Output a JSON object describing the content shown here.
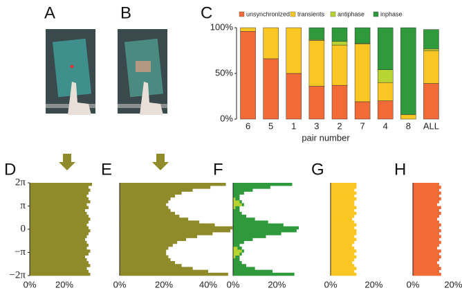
{
  "panel_labels": [
    "A",
    "B",
    "C",
    "D",
    "E",
    "F",
    "G",
    "H"
  ],
  "chart_data": [
    {
      "type": "bar",
      "stacked": true,
      "xlabel": "pair number",
      "categories": [
        "6",
        "5",
        "1",
        "3",
        "2",
        "7",
        "4",
        "8",
        "ALL"
      ],
      "series": [
        {
          "name": "unsynchronized",
          "color": "#f26a35",
          "values": [
            96,
            66,
            50,
            36,
            37,
            19,
            20,
            0,
            39
          ]
        },
        {
          "name": "transients",
          "color": "#f9c623",
          "values": [
            4,
            34,
            50,
            50,
            44,
            63,
            20,
            5,
            36
          ]
        },
        {
          "name": "antiphase",
          "color": "#b8d432",
          "values": [
            0,
            0,
            0,
            1,
            4,
            1,
            14,
            0,
            2
          ]
        },
        {
          "name": "inphase",
          "color": "#2e9a3c",
          "values": [
            0,
            0,
            0,
            13,
            15,
            17,
            46,
            95,
            21
          ]
        }
      ],
      "ylim": [
        0,
        100
      ],
      "yticks": [
        {
          "value": 0,
          "label": "0%"
        },
        {
          "value": 50,
          "label": "50%"
        },
        {
          "value": 100,
          "label": "100%"
        }
      ]
    },
    {
      "type": "histogram",
      "orientation": "horizontal",
      "color": "#8f8a2a",
      "bins": [
        -2,
        -1.875,
        -1.75,
        -1.625,
        -1.5,
        -1.375,
        -1.25,
        -1.125,
        -1,
        -0.875,
        -0.75,
        -0.625,
        -0.5,
        -0.375,
        -0.25,
        -0.125,
        0,
        0.125,
        0.25,
        0.375,
        0.5,
        0.625,
        0.75,
        0.875,
        1,
        1.125,
        1.25,
        1.375,
        1.5,
        1.625,
        1.75,
        1.875,
        2
      ],
      "values": [
        35,
        34,
        33,
        35,
        34,
        33,
        32,
        34,
        35,
        33,
        34,
        33,
        32,
        33,
        34,
        35,
        34,
        33,
        34,
        35,
        34,
        33,
        32,
        34,
        33,
        35,
        34,
        33,
        34,
        35,
        34,
        36
      ],
      "xlim": [
        0,
        40
      ],
      "xticks": [
        {
          "value": 0,
          "label": "0%"
        },
        {
          "value": 20,
          "label": "20%"
        }
      ],
      "ylim": [
        -2,
        2
      ],
      "yticks": [
        {
          "value": 2,
          "label": "2π"
        },
        {
          "value": 1,
          "label": "π"
        },
        0,
        {
          "value": -1,
          "label": "−π"
        },
        {
          "value": -2,
          "label": "−2π"
        }
      ]
    },
    {
      "type": "histogram",
      "orientation": "horizontal",
      "color": "#8f8a2a",
      "bins": [
        -2,
        -1.875,
        -1.75,
        -1.625,
        -1.5,
        -1.375,
        -1.25,
        -1.125,
        -1,
        -0.875,
        -0.75,
        -0.625,
        -0.5,
        -0.375,
        -0.25,
        -0.125,
        0,
        0.125,
        0.25,
        0.375,
        0.5,
        0.625,
        0.75,
        0.875,
        1,
        1.125,
        1.25,
        1.375,
        1.5,
        1.625,
        1.75,
        1.875,
        2
      ],
      "values": [
        49,
        40,
        33,
        28,
        25,
        23,
        22,
        21,
        21,
        22,
        24,
        26,
        30,
        35,
        42,
        50,
        51,
        43,
        36,
        31,
        27,
        25,
        23,
        22,
        21,
        22,
        23,
        25,
        28,
        33,
        41,
        48
      ],
      "xlim": [
        0,
        50
      ],
      "xticks": [
        {
          "value": 0,
          "label": "0%"
        },
        {
          "value": 20,
          "label": "20%"
        },
        {
          "value": 40,
          "label": "40%"
        }
      ],
      "ylim": [
        -2,
        2
      ]
    },
    {
      "type": "histogram",
      "orientation": "horizontal",
      "stacked": true,
      "bins": [
        -2,
        -1.875,
        -1.75,
        -1.625,
        -1.5,
        -1.375,
        -1.25,
        -1.125,
        -1,
        -0.875,
        -0.75,
        -0.625,
        -0.5,
        -0.375,
        -0.25,
        -0.125,
        0,
        0.125,
        0.25,
        0.375,
        0.5,
        0.625,
        0.75,
        0.875,
        1,
        1.125,
        1.25,
        1.375,
        1.5,
        1.625,
        1.75,
        1.875,
        2
      ],
      "series": [
        {
          "color": "#b8d432",
          "values": [
            0,
            0,
            0,
            0,
            0,
            0,
            1,
            3,
            4,
            2,
            0,
            0,
            0,
            0,
            0,
            0,
            0,
            0,
            0,
            0,
            0,
            0,
            0,
            1,
            4,
            3,
            1,
            0,
            0,
            0,
            0,
            0
          ]
        },
        {
          "color": "#2e9a3c",
          "values": [
            28,
            18,
            10,
            6,
            4,
            3,
            2,
            1,
            1,
            2,
            3,
            5,
            9,
            15,
            22,
            29,
            30,
            23,
            16,
            10,
            6,
            4,
            3,
            2,
            1,
            1,
            2,
            3,
            5,
            9,
            17,
            27
          ]
        }
      ],
      "xlim": [
        0,
        30
      ],
      "xticks": [
        {
          "value": 0,
          "label": "0%"
        },
        {
          "value": 20,
          "label": "20%"
        }
      ],
      "ylim": [
        -2,
        2
      ]
    },
    {
      "type": "histogram",
      "orientation": "horizontal",
      "color": "#f9c623",
      "bins": [
        -2,
        -1.875,
        -1.75,
        -1.625,
        -1.5,
        -1.375,
        -1.25,
        -1.125,
        -1,
        -0.875,
        -0.75,
        -0.625,
        -0.5,
        -0.375,
        -0.25,
        -0.125,
        0,
        0.125,
        0.25,
        0.375,
        0.5,
        0.625,
        0.75,
        0.875,
        1,
        1.125,
        1.25,
        1.375,
        1.5,
        1.625,
        1.75,
        1.875,
        2
      ],
      "values": [
        12,
        11,
        12,
        11,
        10,
        11,
        12,
        11,
        12,
        11,
        10,
        11,
        12,
        11,
        12,
        12,
        11,
        12,
        11,
        10,
        11,
        12,
        11,
        12,
        11,
        11,
        12,
        11,
        12,
        11,
        12,
        12
      ],
      "xlim": [
        0,
        25
      ],
      "xticks": [
        {
          "value": 0,
          "label": "0%"
        },
        {
          "value": 20,
          "label": "20%"
        }
      ],
      "ylim": [
        -2,
        2
      ]
    },
    {
      "type": "histogram",
      "orientation": "horizontal",
      "color": "#f26a35",
      "bins": [
        -2,
        -1.875,
        -1.75,
        -1.625,
        -1.5,
        -1.375,
        -1.25,
        -1.125,
        -1,
        -0.875,
        -0.75,
        -0.625,
        -0.5,
        -0.375,
        -0.25,
        -0.125,
        0,
        0.125,
        0.25,
        0.375,
        0.5,
        0.625,
        0.75,
        0.875,
        1,
        1.125,
        1.25,
        1.375,
        1.5,
        1.625,
        1.75,
        1.875,
        2
      ],
      "values": [
        14,
        13,
        14,
        13,
        12,
        13,
        14,
        13,
        14,
        12,
        13,
        14,
        13,
        14,
        13,
        14,
        13,
        14,
        13,
        12,
        13,
        14,
        13,
        14,
        12,
        13,
        14,
        13,
        14,
        13,
        14,
        13
      ],
      "xlim": [
        0,
        25
      ],
      "xticks": [
        {
          "value": 0,
          "label": "0%"
        },
        {
          "value": 20,
          "label": "20%"
        }
      ],
      "ylim": [
        -2,
        2
      ]
    }
  ]
}
